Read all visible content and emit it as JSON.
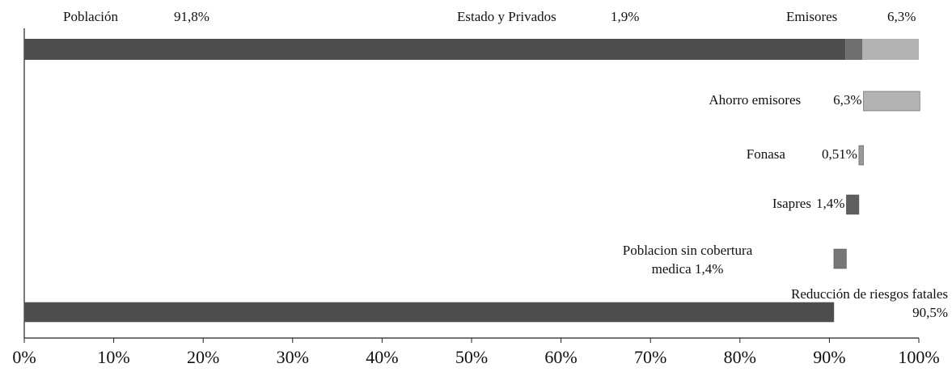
{
  "chart_data": {
    "type": "waterfall",
    "orientation": "horizontal",
    "total": {
      "segments": [
        {
          "name": "Población",
          "value": 91.8,
          "value_label": "91,8%",
          "color": "#4d4d4d"
        },
        {
          "name": "Estado y Privados",
          "value": 1.9,
          "value_label": "1,9%",
          "color": "#6e6e6e"
        },
        {
          "name": "Emisores",
          "value": 6.3,
          "value_label": "6,3%",
          "color": "#b3b3b3"
        }
      ]
    },
    "steps": [
      {
        "name": "Reducción de riesgos fatales",
        "value": 90.5,
        "value_label": "90,5%",
        "color": "#4d4d4d"
      },
      {
        "name": "Poblacion sin cobertura medica",
        "value": 1.4,
        "value_label": "1,4%",
        "color": "#777777"
      },
      {
        "name": "Isapres",
        "value": 1.4,
        "value_label": "1,4%",
        "color": "#5e5e5e"
      },
      {
        "name": "Fonasa",
        "value": 0.51,
        "value_label": "0,51%",
        "color": "#999999"
      },
      {
        "name": "Ahorro emisores",
        "value": 6.3,
        "value_label": "6,3%",
        "color": "#b3b3b3"
      }
    ],
    "xlim": [
      0,
      100
    ],
    "xticks": [
      {
        "value": 0,
        "label": "0%"
      },
      {
        "value": 10,
        "label": "10%"
      },
      {
        "value": 20,
        "label": "20%"
      },
      {
        "value": 30,
        "label": "30%"
      },
      {
        "value": 40,
        "label": "40%"
      },
      {
        "value": 50,
        "label": "50%"
      },
      {
        "value": 60,
        "label": "60%"
      },
      {
        "value": 70,
        "label": "70%"
      },
      {
        "value": 80,
        "label": "80%"
      },
      {
        "value": 90,
        "label": "90%"
      },
      {
        "value": 100,
        "label": "100%"
      }
    ]
  }
}
